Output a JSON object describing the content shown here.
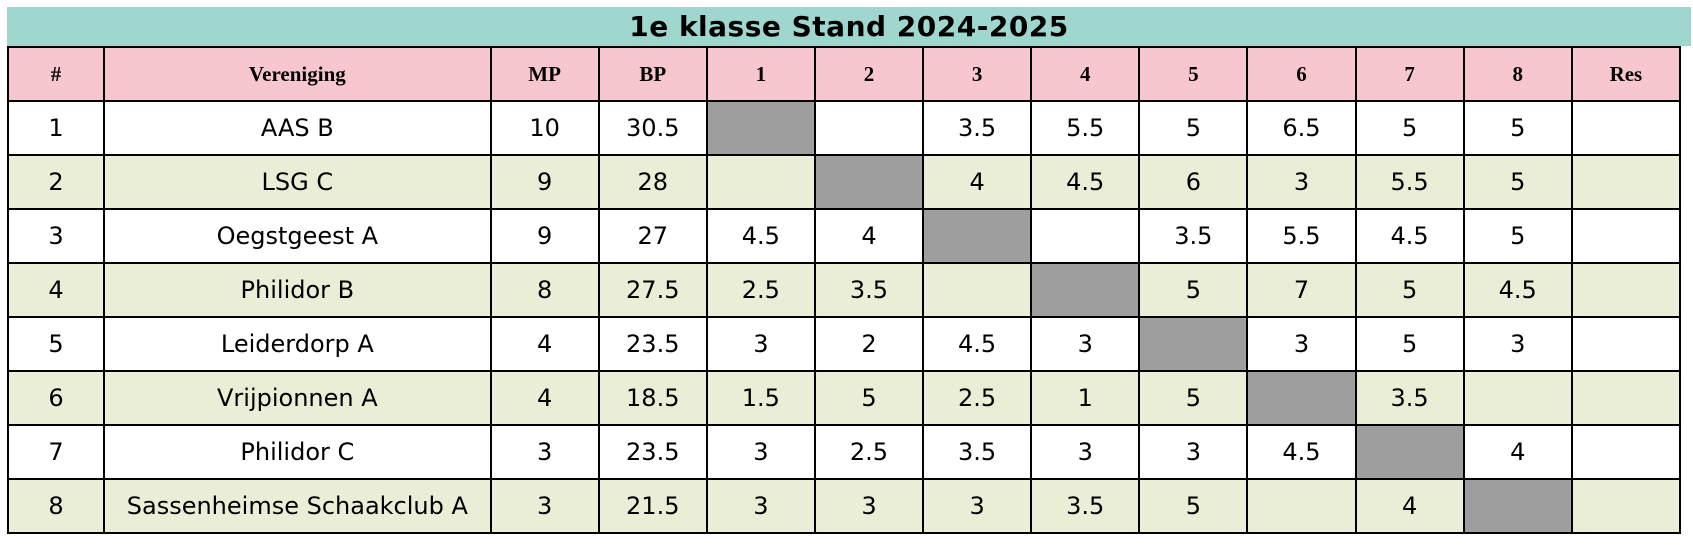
{
  "title": "1e klasse Stand 2024-2025",
  "colors": {
    "title_bg": "#9fd6ce",
    "header_bg": "#f7c6ce",
    "row_bg": "#ffffff",
    "row_alt_bg": "#eaeed6",
    "self_bg": "#9e9e9e",
    "border_color": "#000000",
    "text_color": "#000000"
  },
  "chart_data": {
    "type": "table",
    "title": "1e klasse Stand 2024-2025",
    "columns": [
      "#",
      "Vereniging",
      "MP",
      "BP",
      "1",
      "2",
      "3",
      "4",
      "5",
      "6",
      "7",
      "8",
      "Res"
    ],
    "rows": [
      {
        "pos": "1",
        "team": "AAS B",
        "mp": "10",
        "bp": "30.5",
        "scores": [
          null,
          "",
          "3.5",
          "5.5",
          "5",
          "6.5",
          "5",
          "5"
        ],
        "res": ""
      },
      {
        "pos": "2",
        "team": "LSG C",
        "mp": "9",
        "bp": "28",
        "scores": [
          "",
          null,
          "4",
          "4.5",
          "6",
          "3",
          "5.5",
          "5"
        ],
        "res": ""
      },
      {
        "pos": "3",
        "team": "Oegstgeest A",
        "mp": "9",
        "bp": "27",
        "scores": [
          "4.5",
          "4",
          null,
          "",
          "3.5",
          "5.5",
          "4.5",
          "5"
        ],
        "res": ""
      },
      {
        "pos": "4",
        "team": "Philidor B",
        "mp": "8",
        "bp": "27.5",
        "scores": [
          "2.5",
          "3.5",
          "",
          null,
          "5",
          "7",
          "5",
          "4.5"
        ],
        "res": ""
      },
      {
        "pos": "5",
        "team": "Leiderdorp A",
        "mp": "4",
        "bp": "23.5",
        "scores": [
          "3",
          "2",
          "4.5",
          "3",
          null,
          "3",
          "5",
          "3"
        ],
        "res": ""
      },
      {
        "pos": "6",
        "team": "Vrijpionnen A",
        "mp": "4",
        "bp": "18.5",
        "scores": [
          "1.5",
          "5",
          "2.5",
          "1",
          "5",
          null,
          "3.5",
          ""
        ],
        "res": ""
      },
      {
        "pos": "7",
        "team": "Philidor C",
        "mp": "3",
        "bp": "23.5",
        "scores": [
          "3",
          "2.5",
          "3.5",
          "3",
          "3",
          "4.5",
          null,
          "4"
        ],
        "res": ""
      },
      {
        "pos": "8",
        "team": "Sassenheimse Schaakclub A",
        "mp": "3",
        "bp": "21.5",
        "scores": [
          "3",
          "3",
          "3",
          "3.5",
          "5",
          "",
          "4",
          null
        ],
        "res": ""
      }
    ]
  }
}
